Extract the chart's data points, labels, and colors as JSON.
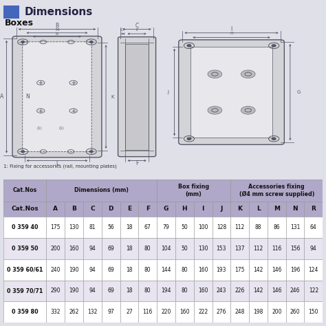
{
  "title": "Dimensions",
  "subtitle": "Boxes",
  "note": "1: Fixing for accessories (rail, mounting plates)",
  "bg_color": "#e0e0e8",
  "header_bg": "#b8b0cc",
  "alt_colors": [
    "#ffffff",
    "#e8e4f0"
  ],
  "border_color": "#999999",
  "col_headers": [
    "Cat.Nos",
    "A",
    "B",
    "C",
    "D",
    "E",
    "F",
    "G",
    "H",
    "I",
    "J",
    "K",
    "L",
    "M",
    "N",
    "R"
  ],
  "rows": [
    [
      "0 359 40",
      175,
      130,
      81,
      56,
      18,
      67,
      79,
      50,
      100,
      128,
      112,
      88,
      86,
      131,
      64
    ],
    [
      "0 359 50",
      200,
      160,
      94,
      69,
      18,
      80,
      104,
      50,
      130,
      153,
      137,
      112,
      116,
      156,
      94
    ],
    [
      "0 359 60/61",
      240,
      190,
      94,
      69,
      18,
      80,
      144,
      80,
      160,
      193,
      175,
      142,
      146,
      196,
      124
    ],
    [
      "0 359 70/71",
      290,
      190,
      94,
      69,
      18,
      80,
      194,
      80,
      160,
      243,
      226,
      142,
      146,
      246,
      122
    ],
    [
      "0 359 80",
      332,
      262,
      132,
      97,
      27,
      116,
      220,
      160,
      222,
      276,
      248,
      198,
      200,
      260,
      150
    ]
  ],
  "title_color": "#222244",
  "title_fontsize": 11,
  "subtitle_fontsize": 9,
  "blue_square": "#4466bb",
  "line_color": "#555566",
  "box_fill": "#d4d4d8",
  "box_inner_fill": "#e8e8ec",
  "diagram_bg": "#e0e0e8"
}
